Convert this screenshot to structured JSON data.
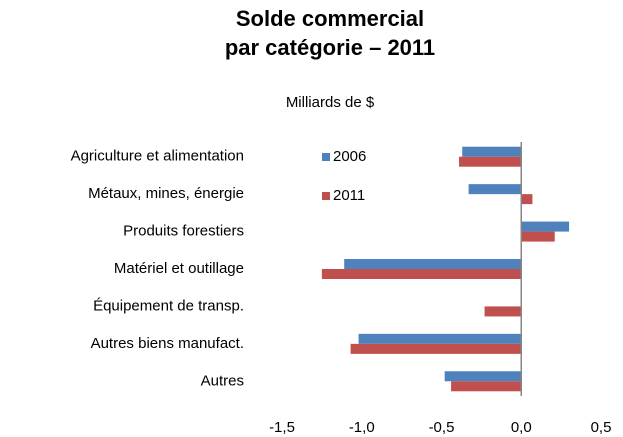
{
  "chart_data": {
    "type": "barh",
    "title": [
      "Solde commercial",
      "par catégorie – 2011"
    ],
    "subtitle": "Milliards de $",
    "categories": [
      "Agriculture et alimentation",
      "Métaux, mines, énergie",
      "Produits forestiers",
      "Matériel et outillage",
      "Équipement de transp.",
      "Autres biens manufact.",
      "Autres"
    ],
    "series": [
      {
        "name": "2006",
        "color": "#4f81bd",
        "values": [
          -0.37,
          -0.33,
          0.3,
          -1.11,
          0,
          -1.02,
          -0.48
        ]
      },
      {
        "name": "2011",
        "color": "#c0504d",
        "values": [
          -0.39,
          0.07,
          0.21,
          -1.25,
          -0.23,
          -1.07,
          -0.44
        ]
      }
    ],
    "xlim": [
      -1.5,
      0.5
    ],
    "xticks": [
      {
        "value": -1.5,
        "label": "-1,5"
      },
      {
        "value": -1.0,
        "label": "-1,0"
      },
      {
        "value": -0.5,
        "label": "-0,5"
      },
      {
        "value": 0,
        "label": "0,0"
      },
      {
        "value": 0.5,
        "label": "0,5"
      }
    ],
    "legend": "upper-left"
  }
}
